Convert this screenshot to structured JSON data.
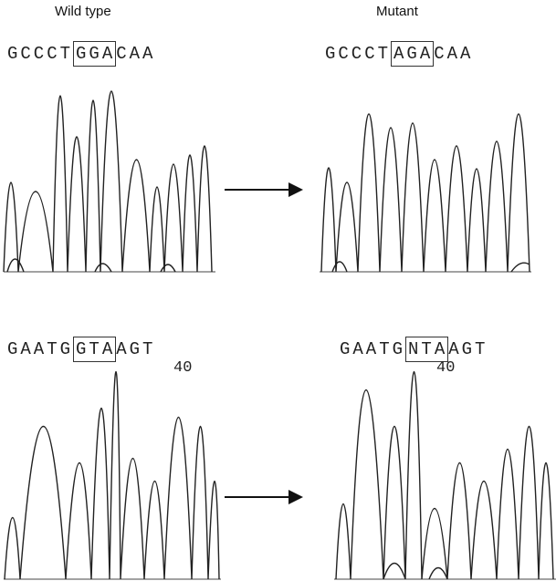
{
  "header": {
    "left_label": "Wild type",
    "right_label": "Mutant"
  },
  "panels": [
    {
      "prefix": "GCCCT",
      "boxed": "GGA",
      "suffix": "CAA"
    },
    {
      "prefix": "GCCCT",
      "boxed": "AGA",
      "suffix": "CAA"
    },
    {
      "prefix": "GAATG",
      "boxed": "GTA",
      "suffix": "AGT",
      "position": "40"
    },
    {
      "prefix": "GAATG",
      "boxed": "NTA",
      "suffix": "AGT",
      "position": "40"
    }
  ]
}
